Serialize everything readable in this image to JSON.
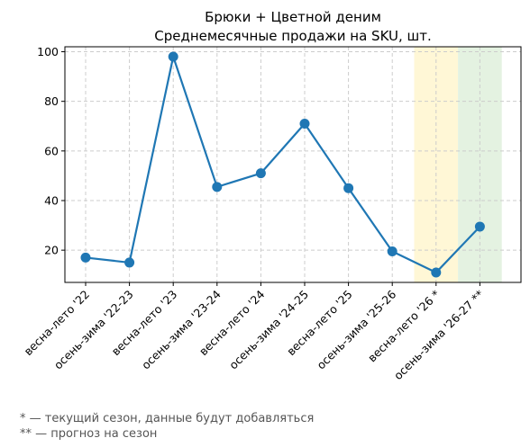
{
  "chart_data": {
    "type": "line",
    "title": "Брюки + Цветной деним",
    "subtitle": "Среднемесячные продажи на SKU, шт.",
    "xlabel": "",
    "ylabel": "",
    "categories": [
      "весна-лето '22",
      "осень-зима '22-23",
      "весна-лето '23",
      "осень-зима '23-24",
      "весна-лето '24",
      "осень-зима '24-25",
      "весна-лето '25",
      "осень-зима '25-26",
      "весна-лето '26 *",
      "осень-зима '26-27 **"
    ],
    "series": [
      {
        "values": [
          17,
          15,
          98,
          45.5,
          51,
          71,
          45,
          19.5,
          11,
          29.5
        ]
      }
    ],
    "ylim": [
      7,
      102
    ],
    "yticks": [
      20,
      40,
      60,
      80,
      100
    ],
    "grid": true,
    "highlights": [
      {
        "category": "весна-лето '26 *",
        "color": "#fff7d6"
      },
      {
        "category": "осень-зима '26-27 **",
        "color": "#e4f2e1"
      }
    ],
    "line_color": "#1f77b4",
    "footnotes": [
      "* — текущий сезон, данные будут добавляться",
      "** — прогноз на сезон"
    ]
  }
}
